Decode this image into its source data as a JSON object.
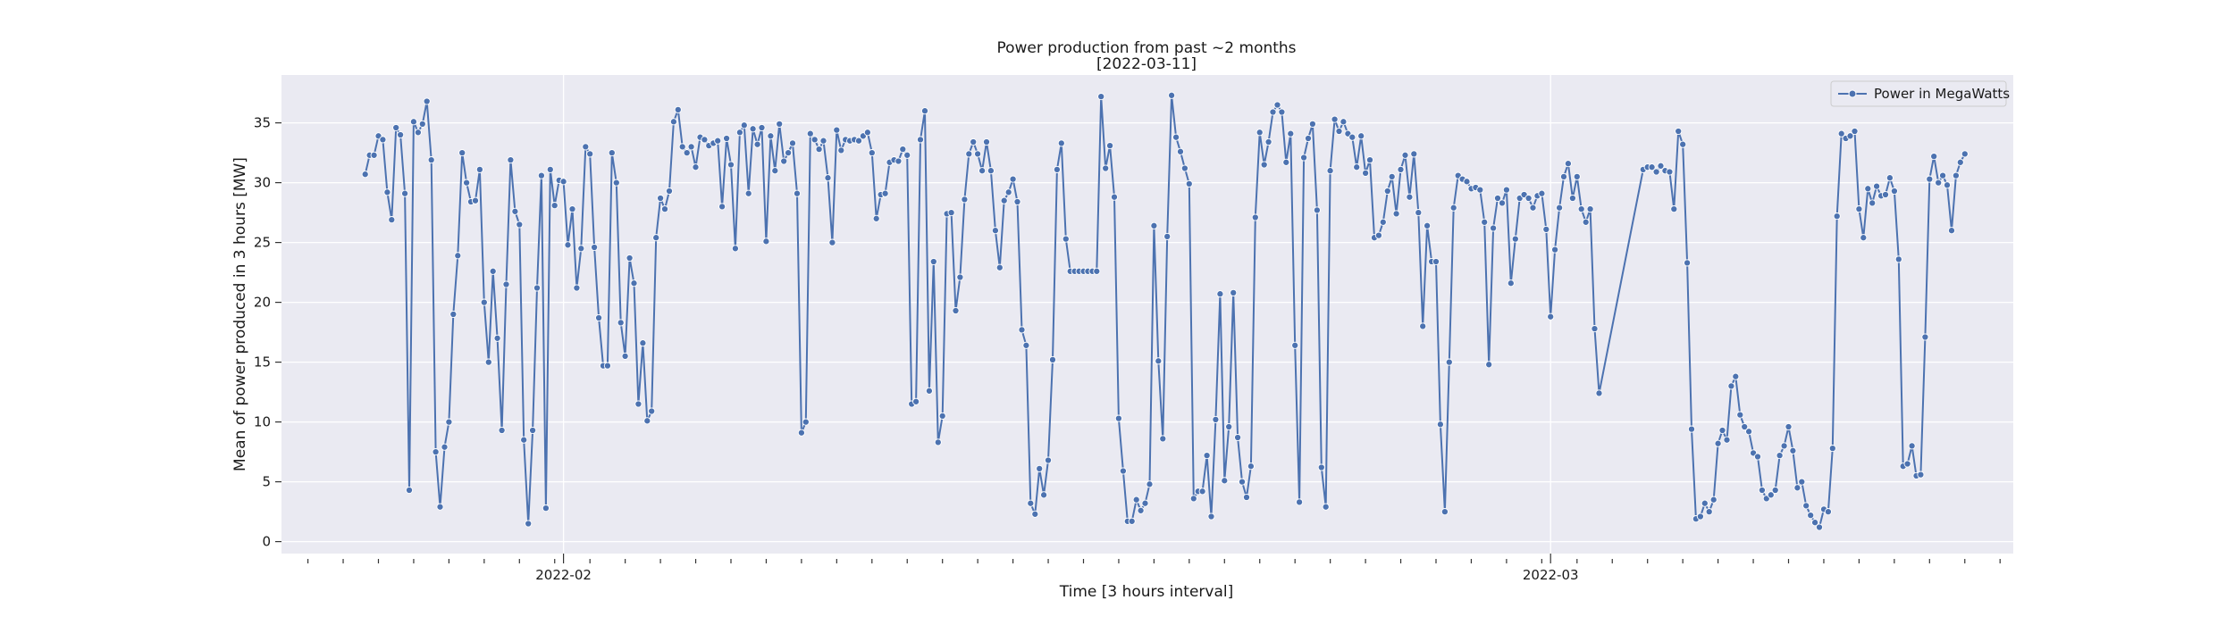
{
  "chart_data": {
    "type": "line",
    "title": "Power production from past ~2 months",
    "subtitle": "[2022-03-11]",
    "xlabel": "Time [3 hours interval]",
    "ylabel": "Mean of power produced in 3 hours [MW]",
    "ylim": [
      -1,
      39
    ],
    "yticks": [
      0,
      5,
      10,
      15,
      20,
      25,
      30,
      35
    ],
    "x_date_labels": [
      {
        "label": "2022-02",
        "index": 45
      },
      {
        "label": "2022-03",
        "index": 269
      }
    ],
    "x_range_index": [
      -19,
      374
    ],
    "minor_tick_step": 8,
    "minor_tick_start": -13,
    "grid": true,
    "legend": {
      "position": "top-right",
      "entries": [
        "Power in MegaWatts"
      ]
    },
    "colors": {
      "line": "#4c72b0",
      "background": "#eaeaf2",
      "grid": "#ffffff"
    },
    "series": [
      {
        "name": "Power in MegaWatts",
        "segments": [
          {
            "start_index": 0,
            "values": [
              30.7,
              32.3,
              32.3,
              33.9,
              33.6,
              29.2,
              26.9,
              34.6,
              34,
              29.1,
              4.3,
              35.1,
              34.2,
              34.9,
              36.8,
              31.9,
              7.5,
              2.9,
              7.9,
              10,
              19,
              23.9,
              32.5,
              30,
              28.4,
              28.5,
              31.1,
              20,
              15,
              22.6,
              17,
              9.3,
              21.5,
              31.9,
              27.6,
              26.5,
              8.5,
              1.5,
              9.3,
              21.2,
              30.6,
              2.8,
              31.1,
              28.1,
              30.2,
              30.1,
              24.8,
              27.8,
              21.2,
              24.5,
              33,
              32.4,
              24.6,
              18.7,
              14.7,
              14.7,
              32.5,
              30,
              18.3,
              15.5,
              23.7,
              21.6,
              11.5,
              16.6,
              10.1,
              10.9,
              25.4,
              28.7,
              27.8,
              29.3,
              35.1,
              36.1,
              33,
              32.5,
              33,
              31.3,
              33.8,
              33.6,
              33.1,
              33.3,
              33.5,
              28,
              33.7,
              31.5,
              24.5,
              34.2,
              34.8,
              29.1,
              34.5,
              33.2,
              34.6,
              25.1,
              33.9,
              31,
              34.9,
              31.8,
              32.5,
              33.3,
              29.1,
              9.1,
              10,
              34.1,
              33.6,
              32.8,
              33.5,
              30.4,
              25,
              34.4,
              32.7,
              33.6,
              33.5,
              33.6,
              33.5,
              33.9,
              34.2,
              32.5,
              27,
              29,
              29.1,
              31.7,
              31.9,
              31.8,
              32.8,
              32.3,
              11.5,
              11.7,
              33.6,
              36,
              12.6,
              23.4,
              8.3,
              10.5,
              27.4,
              27.5,
              19.3,
              22.1,
              28.6,
              32.4,
              33.4,
              32.4,
              31,
              33.4,
              31,
              26,
              22.9,
              28.5,
              29.2,
              30.3,
              28.4,
              17.7,
              16.4,
              3.2,
              2.3,
              6.1,
              3.9,
              6.8,
              15.2,
              31.1,
              33.3,
              25.3,
              22.6,
              22.6,
              22.6,
              22.6,
              22.6,
              22.6,
              22.6,
              37.2,
              31.2,
              33.1,
              28.8,
              10.3,
              5.9,
              1.7,
              1.7,
              3.5,
              2.6,
              3.2,
              4.8,
              26.4,
              15.1,
              8.6,
              25.5,
              37.3,
              33.8,
              32.6,
              31.2,
              29.9,
              3.6,
              4.2,
              4.2,
              7.2,
              2.1,
              10.2,
              20.7,
              5.1,
              9.6,
              20.8,
              8.7,
              5,
              3.7,
              6.3,
              27.1,
              34.2,
              31.5,
              33.4,
              35.9,
              36.5,
              35.9,
              31.7,
              34.1,
              16.4,
              3.3,
              32.1,
              33.7,
              34.9,
              27.7,
              6.2,
              2.9,
              31,
              35.3,
              34.3,
              35.1,
              34.1,
              33.8,
              31.3,
              33.9,
              30.8,
              31.9,
              25.4,
              25.6,
              26.7,
              29.3,
              30.5,
              27.4,
              31.1,
              32.3,
              28.8,
              32.4,
              27.5,
              18,
              26.4,
              23.4,
              23.4,
              9.8,
              2.5,
              15,
              27.9,
              30.6,
              30.3,
              30.1,
              29.5,
              29.6,
              29.4,
              26.7,
              14.8,
              26.2,
              28.7,
              28.3,
              29.4,
              21.6,
              25.3,
              28.7,
              29,
              28.7,
              27.9,
              28.9,
              29.1,
              26.1,
              18.8,
              24.4,
              27.9,
              30.5,
              31.6,
              28.7,
              30.5,
              27.8,
              26.7,
              27.8,
              17.8,
              12.4
            ]
          },
          {
            "start_index": 290,
            "values": [
              31.1,
              31.3,
              31.3,
              30.9,
              31.4,
              31,
              30.9,
              27.8,
              34.3,
              33.2,
              23.3,
              9.4,
              1.9,
              2.1,
              3.2,
              2.5,
              3.5,
              8.2,
              9.3,
              8.5,
              13,
              13.8,
              10.6,
              9.6,
              9.2,
              7.4,
              7.1,
              4.3,
              3.6,
              3.9,
              4.3,
              7.2,
              8,
              9.6,
              7.6,
              4.5,
              5,
              3,
              2.2,
              1.6,
              1.2,
              2.7,
              2.5,
              7.8,
              27.2,
              34.1,
              33.7,
              33.9,
              34.3,
              27.8,
              25.4,
              29.5,
              28.3,
              29.7,
              28.9,
              29,
              30.4,
              29.3,
              23.6,
              6.3,
              6.5,
              8,
              5.5,
              5.6,
              17.1,
              30.3,
              32.2,
              30,
              30.6,
              29.8,
              26,
              30.6,
              31.7,
              32.4
            ]
          }
        ]
      }
    ]
  }
}
